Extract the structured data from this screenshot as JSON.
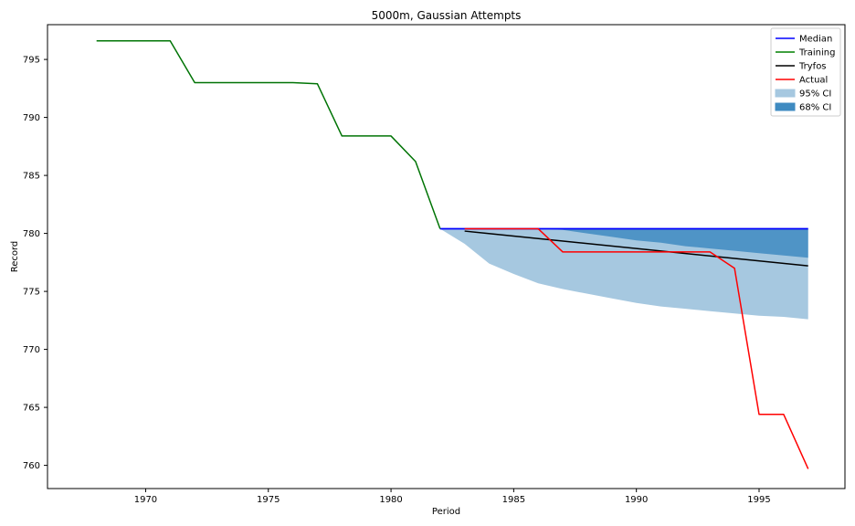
{
  "chart_data": {
    "type": "line",
    "title": "5000m, Gaussian Attempts",
    "xlabel": "Period",
    "ylabel": "Record",
    "xlim": [
      1966,
      1998.5
    ],
    "ylim": [
      758,
      798
    ],
    "xticks": [
      1970,
      1975,
      1980,
      1985,
      1990,
      1995
    ],
    "yticks": [
      760,
      765,
      770,
      775,
      780,
      785,
      790,
      795
    ],
    "grid": false,
    "legend_position": "top-right",
    "series": [
      {
        "name": "Median",
        "kind": "line",
        "color": "#0000ff",
        "x": [
          1982,
          1997
        ],
        "y": [
          780.4,
          780.4
        ]
      },
      {
        "name": "Training",
        "kind": "line",
        "color": "#008000",
        "x": [
          1968,
          1971,
          1972,
          1976,
          1977,
          1978,
          1980,
          1981,
          1982
        ],
        "y": [
          796.6,
          796.6,
          793.0,
          793.0,
          792.9,
          788.4,
          788.4,
          786.2,
          780.4
        ]
      },
      {
        "name": "Tryfos",
        "kind": "line",
        "color": "#000000",
        "x": [
          1983,
          1997
        ],
        "y": [
          780.2,
          777.2
        ]
      },
      {
        "name": "Actual",
        "kind": "line",
        "color": "#ff0000",
        "x": [
          1983,
          1986,
          1987,
          1993,
          1994,
          1995,
          1996,
          1997
        ],
        "y": [
          780.4,
          780.4,
          778.4,
          778.4,
          777.0,
          764.4,
          764.4,
          759.7
        ]
      },
      {
        "name": "95% CI",
        "kind": "band",
        "color": "#a6c8e0",
        "x": [
          1982,
          1983,
          1984,
          1985,
          1986,
          1987,
          1988,
          1989,
          1990,
          1991,
          1992,
          1993,
          1994,
          1995,
          1996,
          1997
        ],
        "upper": [
          780.4,
          780.4,
          780.4,
          780.4,
          780.4,
          780.4,
          780.4,
          780.4,
          780.4,
          780.4,
          780.4,
          780.4,
          780.4,
          780.4,
          780.4,
          780.4
        ],
        "lower": [
          780.4,
          779.1,
          777.4,
          776.5,
          775.7,
          775.2,
          774.8,
          774.4,
          774.0,
          773.7,
          773.5,
          773.3,
          773.1,
          772.9,
          772.8,
          772.6
        ]
      },
      {
        "name": "68% CI",
        "kind": "band",
        "color": "#3f8bc1",
        "x": [
          1982,
          1983,
          1984,
          1985,
          1986,
          1987,
          1988,
          1989,
          1990,
          1991,
          1992,
          1993,
          1994,
          1995,
          1996,
          1997
        ],
        "upper": [
          780.4,
          780.4,
          780.4,
          780.4,
          780.4,
          780.4,
          780.4,
          780.4,
          780.4,
          780.4,
          780.4,
          780.4,
          780.4,
          780.4,
          780.4,
          780.4
        ],
        "lower": [
          780.4,
          780.4,
          780.4,
          780.4,
          780.4,
          780.3,
          780.0,
          779.7,
          779.4,
          779.2,
          778.9,
          778.7,
          778.5,
          778.3,
          778.1,
          777.9
        ]
      }
    ]
  }
}
